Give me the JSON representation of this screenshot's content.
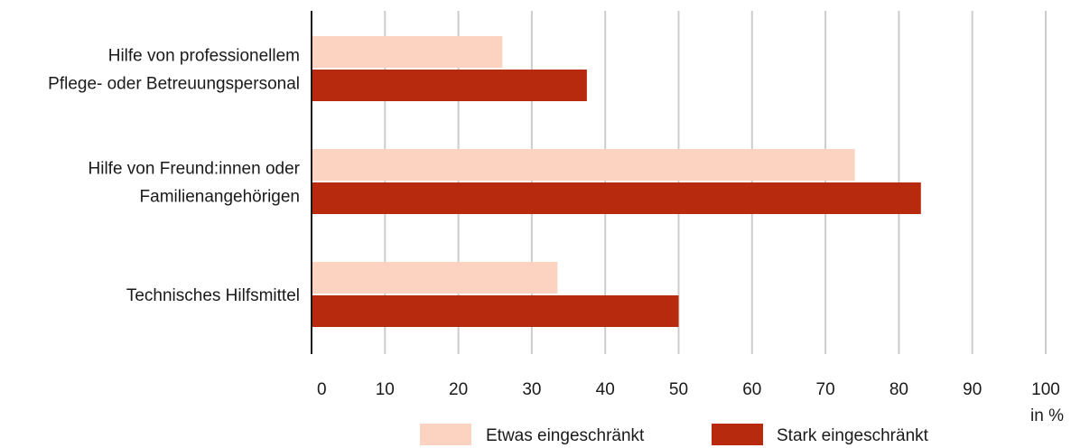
{
  "chart_data": {
    "type": "bar",
    "orientation": "horizontal",
    "categories": [
      [
        "Hilfe von professionellem",
        "Pflege- oder Betreuungspersonal"
      ],
      [
        "Hilfe von Freund:innen oder",
        "Familienangehörigen"
      ],
      [
        "Technisches Hilfsmittel"
      ]
    ],
    "series": [
      {
        "name": "Etwas eingeschränkt",
        "color": "#fbd3c0",
        "values": [
          26,
          74,
          33.5
        ]
      },
      {
        "name": "Stark eingeschränkt",
        "color": "#b72a0e",
        "values": [
          37.5,
          83,
          50
        ]
      }
    ],
    "xlim": [
      0,
      100
    ],
    "xticks": [
      0,
      10,
      20,
      30,
      40,
      50,
      60,
      70,
      80,
      90,
      100
    ],
    "xunit": "in %",
    "grid": true,
    "grid_color": "#cccccc",
    "legend_position": "bottom"
  }
}
